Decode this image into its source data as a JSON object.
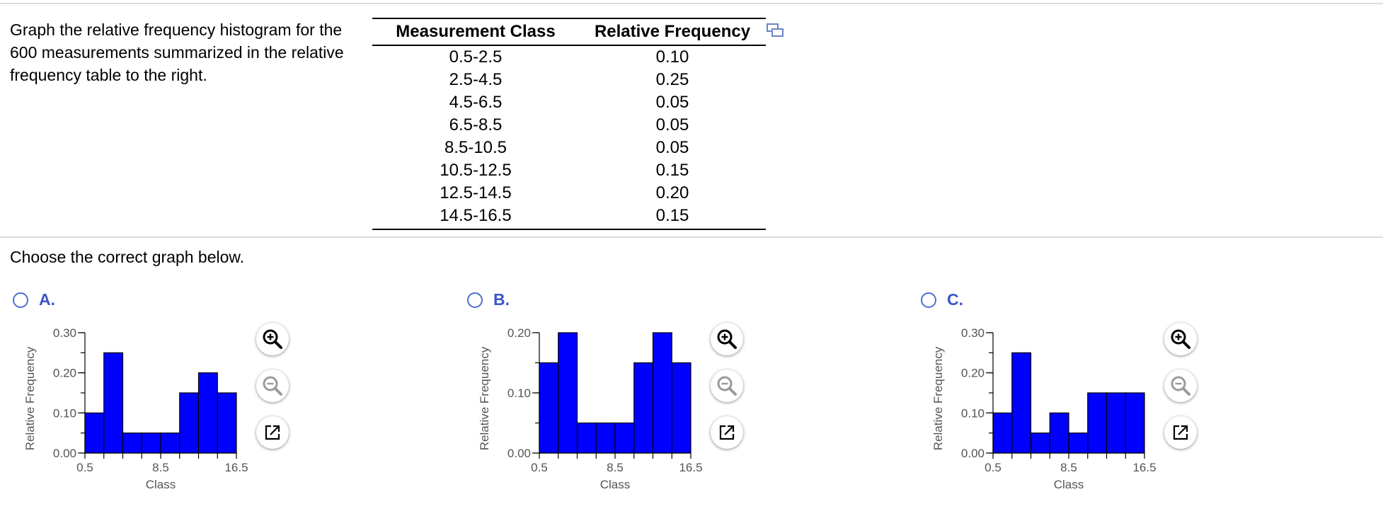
{
  "question": "Graph the relative frequency histogram for the 600 measurements summarized in the relative frequency table to the right.",
  "table": {
    "headers": [
      "Measurement Class",
      "Relative Frequency"
    ],
    "rows": [
      [
        "0.5-2.5",
        "0.10"
      ],
      [
        "2.5-4.5",
        "0.25"
      ],
      [
        "4.5-6.5",
        "0.05"
      ],
      [
        "6.5-8.5",
        "0.05"
      ],
      [
        "8.5-10.5",
        "0.05"
      ],
      [
        "10.5-12.5",
        "0.15"
      ],
      [
        "12.5-14.5",
        "0.20"
      ],
      [
        "14.5-16.5",
        "0.15"
      ]
    ]
  },
  "prompt": "Choose the correct graph below.",
  "icons": {
    "expand": "expand-table-icon",
    "zoom_in": "zoom-in-icon",
    "zoom_out": "zoom-out-icon",
    "open": "open-external-icon"
  },
  "colors": {
    "bar_fill": "#0000ff",
    "radio": "#4a6fd0",
    "option_letter": "#3b55c8"
  },
  "options": [
    {
      "letter": "A.",
      "selected": false
    },
    {
      "letter": "B.",
      "selected": false
    },
    {
      "letter": "C.",
      "selected": false
    }
  ],
  "chart_data": [
    {
      "type": "bar",
      "option": "A.",
      "bin_edges": [
        0.5,
        2.5,
        4.5,
        6.5,
        8.5,
        10.5,
        12.5,
        14.5,
        16.5
      ],
      "values": [
        0.1,
        0.25,
        0.05,
        0.05,
        0.05,
        0.15,
        0.2,
        0.15
      ],
      "xlabel": "Class",
      "ylabel": "Relative Frequency",
      "xticks": [
        "0.5",
        "8.5",
        "16.5"
      ],
      "xtick_values": [
        0.5,
        8.5,
        16.5
      ],
      "yticks": [
        "0.00",
        "0.10",
        "0.20",
        "0.30"
      ],
      "ytick_values": [
        0,
        0.1,
        0.2,
        0.3
      ],
      "xlim": [
        0.5,
        16.5
      ],
      "ylim": [
        0,
        0.3
      ],
      "grid": false
    },
    {
      "type": "bar",
      "option": "B.",
      "bin_edges": [
        0.5,
        2.5,
        4.5,
        6.5,
        8.5,
        10.5,
        12.5,
        14.5,
        16.5
      ],
      "values": [
        0.15,
        0.2,
        0.05,
        0.05,
        0.05,
        0.15,
        0.2,
        0.15
      ],
      "xlabel": "Class",
      "ylabel": "Relative Frequency",
      "xticks": [
        "0.5",
        "8.5",
        "16.5"
      ],
      "xtick_values": [
        0.5,
        8.5,
        16.5
      ],
      "yticks": [
        "0.00",
        "0.10",
        "0.20"
      ],
      "ytick_values": [
        0,
        0.1,
        0.2
      ],
      "xlim": [
        0.5,
        16.5
      ],
      "ylim": [
        0,
        0.2
      ],
      "grid": false
    },
    {
      "type": "bar",
      "option": "C.",
      "bin_edges": [
        0.5,
        2.5,
        4.5,
        6.5,
        8.5,
        10.5,
        12.5,
        14.5,
        16.5
      ],
      "values": [
        0.1,
        0.25,
        0.05,
        0.1,
        0.05,
        0.15,
        0.15,
        0.15
      ],
      "xlabel": "Class",
      "ylabel": "Relative Frequency",
      "xticks": [
        "0.5",
        "8.5",
        "16.5"
      ],
      "xtick_values": [
        0.5,
        8.5,
        16.5
      ],
      "yticks": [
        "0.00",
        "0.10",
        "0.20",
        "0.30"
      ],
      "ytick_values": [
        0,
        0.1,
        0.2,
        0.3
      ],
      "xlim": [
        0.5,
        16.5
      ],
      "ylim": [
        0,
        0.3
      ],
      "grid": false
    }
  ]
}
